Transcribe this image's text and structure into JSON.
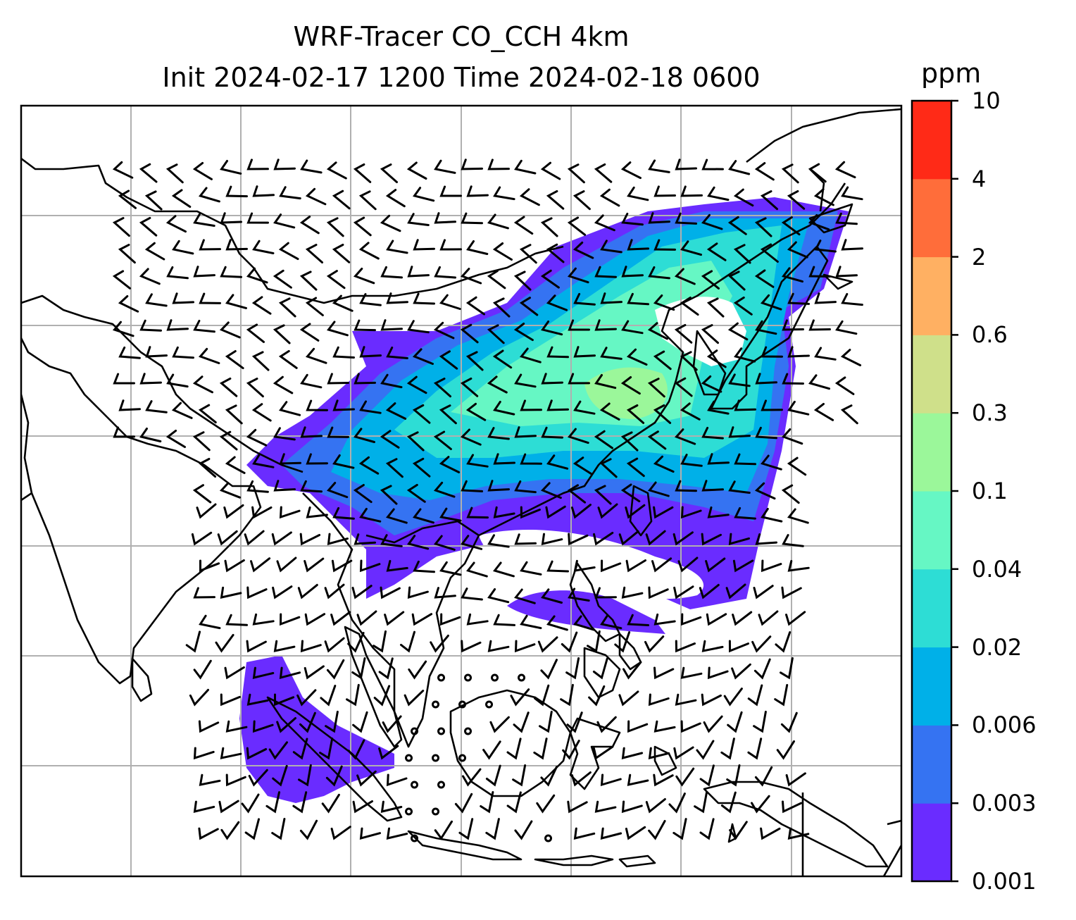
{
  "title": {
    "line1": "WRF-Tracer CO_CCH 4km",
    "line2": "Init 2024-02-17 1200 Time 2024-02-18 0600"
  },
  "colorbar": {
    "units": "ppm",
    "levels": [
      "0.001",
      "0.003",
      "0.006",
      "0.02",
      "0.04",
      "0.1",
      "0.3",
      "0.6",
      "2",
      "4",
      "10"
    ],
    "colors": [
      "#6a2cff",
      "#3573f2",
      "#00b0e8",
      "#2dddd5",
      "#66f7c4",
      "#9bf79a",
      "#cfe08a",
      "#ffb062",
      "#ff6d3a",
      "#ff2a17"
    ]
  },
  "map": {
    "gridlines": true,
    "grid_color": "#b0b0b0",
    "coastline_color": "#000000",
    "land_fill": "#ffffff",
    "wind_barbs": true,
    "plume_fill_colors": {
      "lowest": "#6a2cff",
      "low": "#3573f2",
      "mid": "#00b0e8",
      "upper": "#2dddd5",
      "core": "#66f7c4",
      "peak": "#9bf79a"
    }
  }
}
